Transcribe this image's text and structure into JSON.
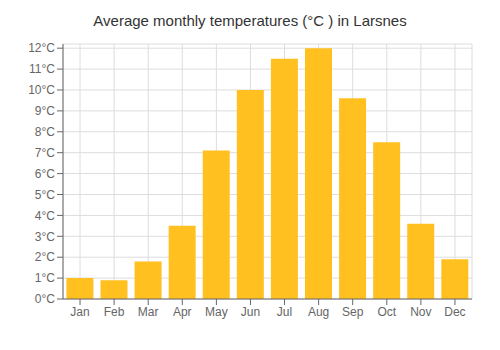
{
  "chart_data": {
    "type": "bar",
    "title": "Average monthly temperatures (°C ) in Larsnes",
    "categories": [
      "Jan",
      "Feb",
      "Mar",
      "Apr",
      "May",
      "Jun",
      "Jul",
      "Aug",
      "Sep",
      "Oct",
      "Nov",
      "Dec"
    ],
    "values": [
      1.0,
      0.9,
      1.8,
      3.5,
      7.1,
      10.0,
      11.5,
      12.0,
      9.6,
      7.5,
      3.6,
      1.9
    ],
    "color": "#FFC020",
    "ylim": [
      0,
      12.2
    ],
    "yticks": [
      {
        "value": 0,
        "label": "0°C"
      },
      {
        "value": 1,
        "label": "1°C"
      },
      {
        "value": 2,
        "label": "2°C"
      },
      {
        "value": 3,
        "label": "3°C"
      },
      {
        "value": 4,
        "label": "4°C"
      },
      {
        "value": 5,
        "label": "5°C"
      },
      {
        "value": 6,
        "label": "6°C"
      },
      {
        "value": 7,
        "label": "7°C"
      },
      {
        "value": 8,
        "label": "8°C"
      },
      {
        "value": 9,
        "label": "9°C"
      },
      {
        "value": 10,
        "label": "10°C"
      },
      {
        "value": 11,
        "label": "11°C"
      },
      {
        "value": 12,
        "label": "12°C"
      }
    ],
    "grid": true
  }
}
